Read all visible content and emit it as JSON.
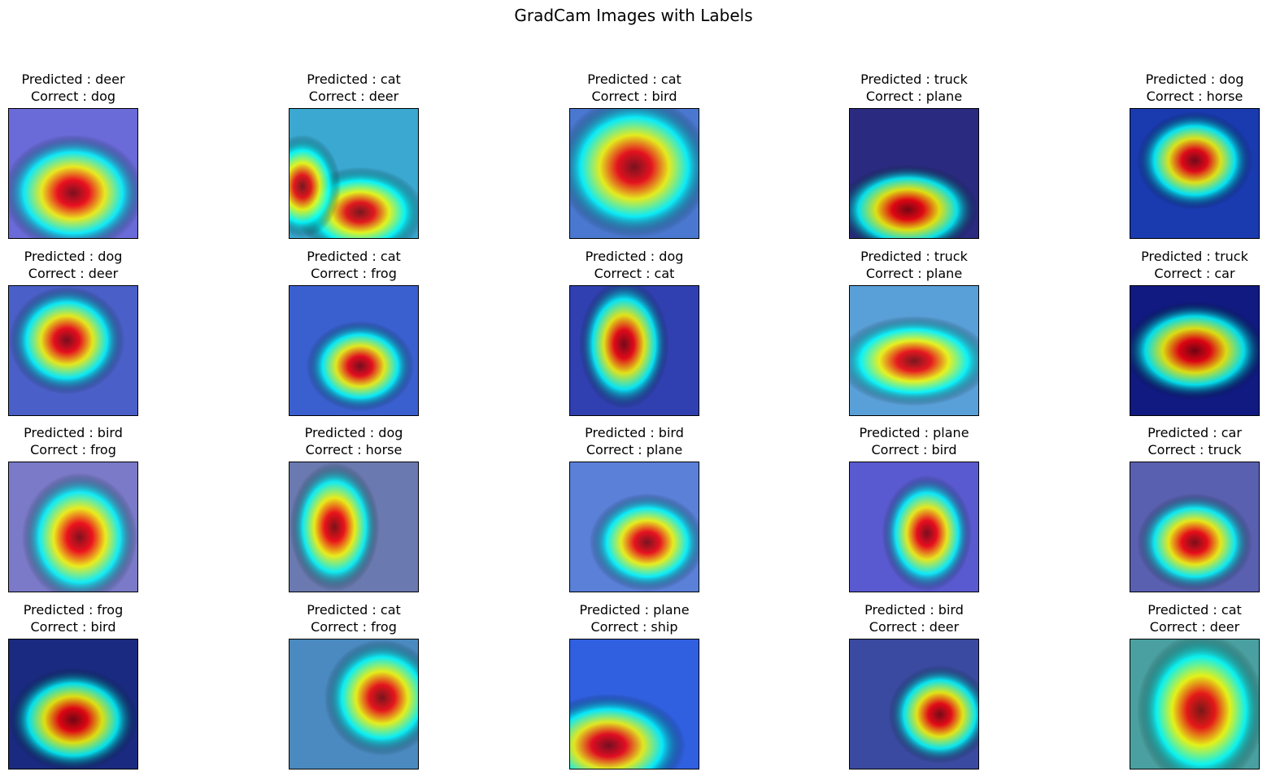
{
  "figure": {
    "title": "GradCam Images with Labels"
  },
  "panels": [
    {
      "predicted": "Predicted : deer",
      "correct": "Correct : dog",
      "heatmap": "gradcam-heatmap"
    },
    {
      "predicted": "Predicted : cat",
      "correct": "Correct : deer",
      "heatmap": "gradcam-heatmap"
    },
    {
      "predicted": "Predicted : cat",
      "correct": "Correct : bird",
      "heatmap": "gradcam-heatmap"
    },
    {
      "predicted": "Predicted : truck",
      "correct": "Correct : plane",
      "heatmap": "gradcam-heatmap"
    },
    {
      "predicted": "Predicted : dog",
      "correct": "Correct : horse",
      "heatmap": "gradcam-heatmap"
    },
    {
      "predicted": "Predicted : dog",
      "correct": "Correct : deer",
      "heatmap": "gradcam-heatmap"
    },
    {
      "predicted": "Predicted : cat",
      "correct": "Correct : frog",
      "heatmap": "gradcam-heatmap"
    },
    {
      "predicted": "Predicted : dog",
      "correct": "Correct : cat",
      "heatmap": "gradcam-heatmap"
    },
    {
      "predicted": "Predicted : truck",
      "correct": "Correct : plane",
      "heatmap": "gradcam-heatmap"
    },
    {
      "predicted": "Predicted : truck",
      "correct": "Correct : car",
      "heatmap": "gradcam-heatmap"
    },
    {
      "predicted": "Predicted : bird",
      "correct": "Correct : frog",
      "heatmap": "gradcam-heatmap"
    },
    {
      "predicted": "Predicted : dog",
      "correct": "Correct : horse",
      "heatmap": "gradcam-heatmap"
    },
    {
      "predicted": "Predicted : bird",
      "correct": "Correct : plane",
      "heatmap": "gradcam-heatmap"
    },
    {
      "predicted": "Predicted : plane",
      "correct": "Correct : bird",
      "heatmap": "gradcam-heatmap"
    },
    {
      "predicted": "Predicted : car",
      "correct": "Correct : truck",
      "heatmap": "gradcam-heatmap"
    },
    {
      "predicted": "Predicted : frog",
      "correct": "Correct : bird",
      "heatmap": "gradcam-heatmap"
    },
    {
      "predicted": "Predicted : cat",
      "correct": "Correct : frog",
      "heatmap": "gradcam-heatmap"
    },
    {
      "predicted": "Predicted : plane",
      "correct": "Correct : ship",
      "heatmap": "gradcam-heatmap"
    },
    {
      "predicted": "Predicted : bird",
      "correct": "Correct : deer",
      "heatmap": "gradcam-heatmap"
    },
    {
      "predicted": "Predicted : cat",
      "correct": "Correct : deer",
      "heatmap": "gradcam-heatmap"
    }
  ],
  "colors": {
    "jet_low": "#00007f",
    "jet_blue": "#0000ff",
    "jet_cyan": "#00ffff",
    "jet_yellow": "#ffff00",
    "jet_red": "#ff0000",
    "jet_high": "#7f0000"
  }
}
